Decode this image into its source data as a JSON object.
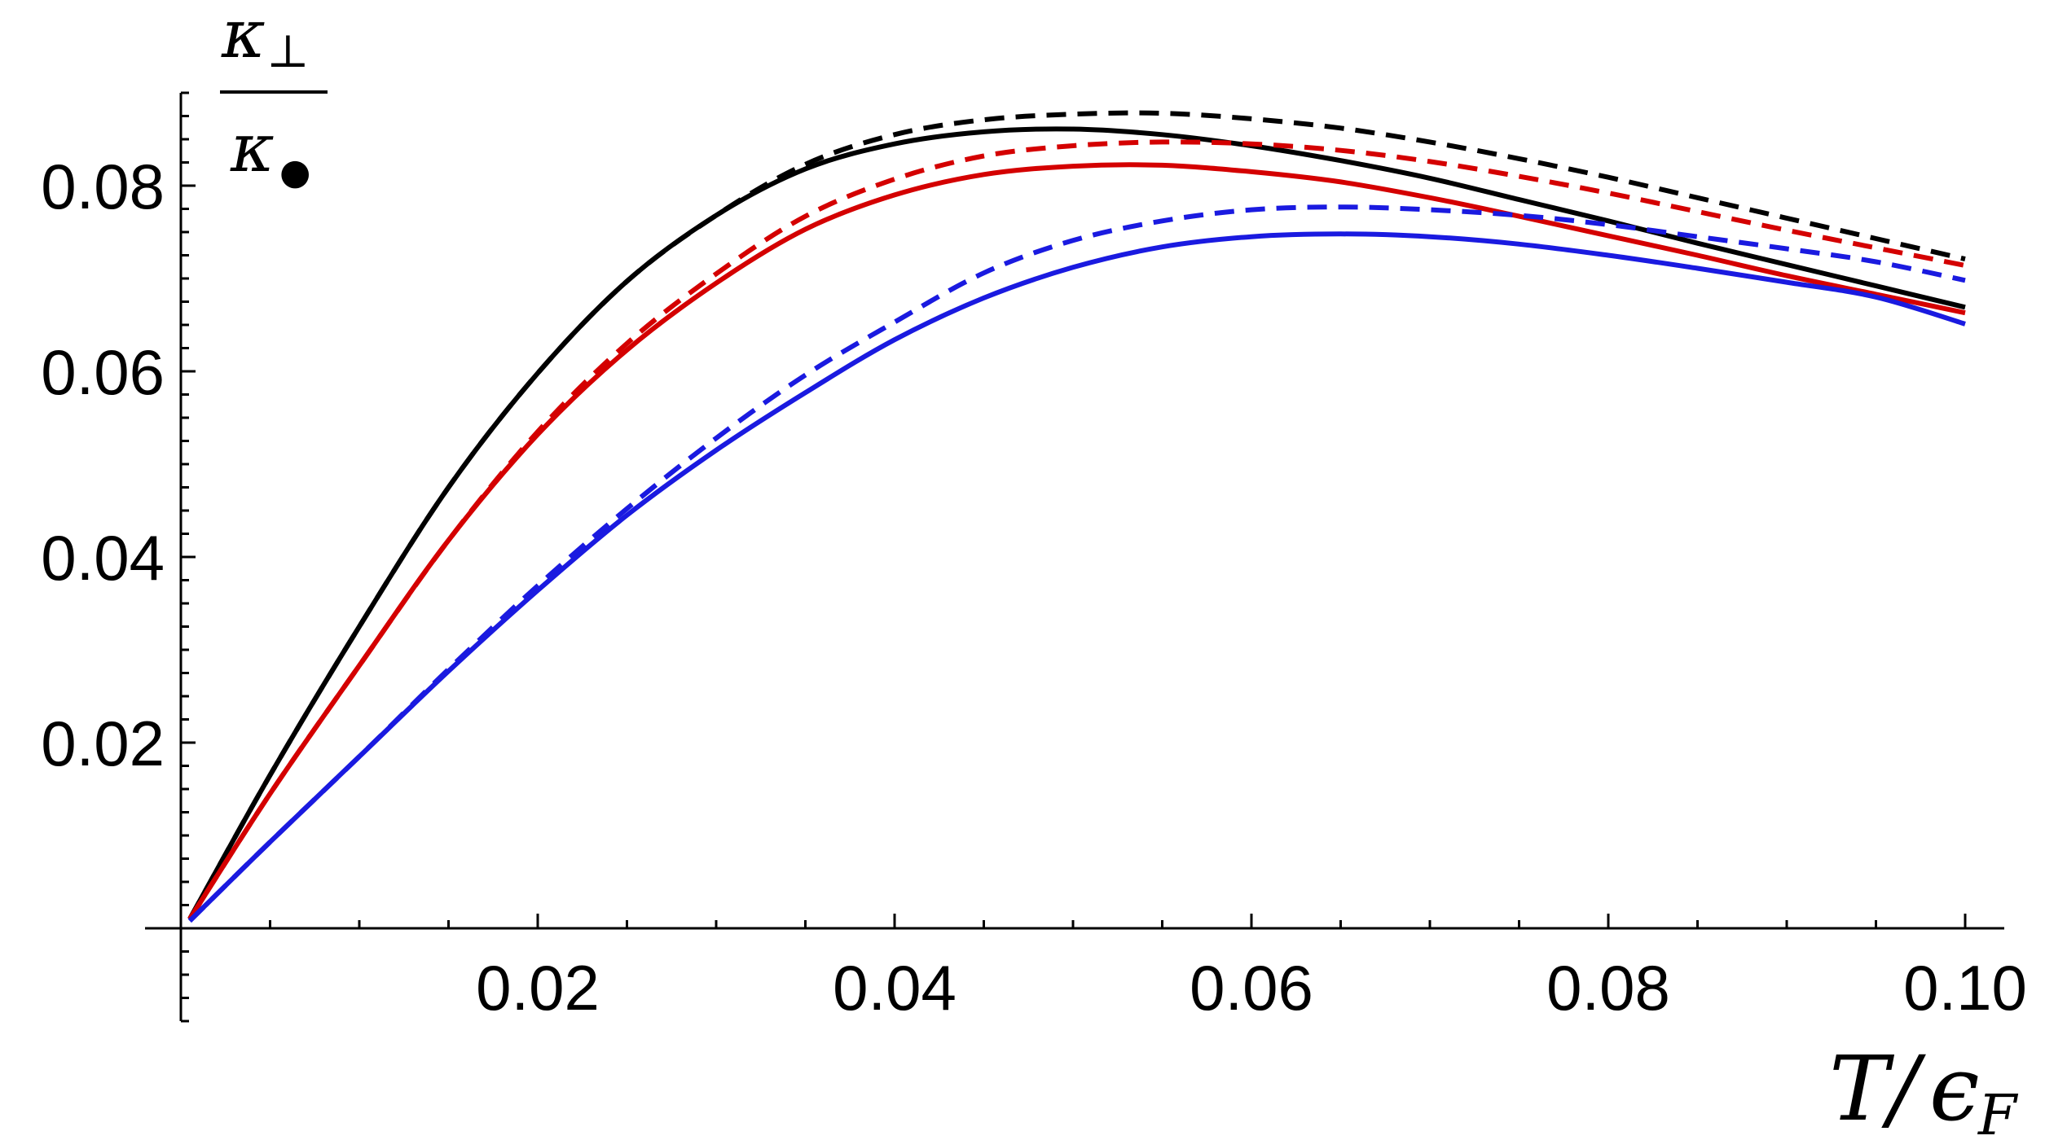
{
  "chart_data": {
    "type": "line",
    "title": "",
    "xlabel": {
      "main": "T",
      "slash": "/",
      "symbol": "ϵ",
      "sub": "F"
    },
    "ylabel": {
      "numerator": "κ",
      "numerator_sub": "⊥",
      "denominator": "κ",
      "denominator_sub": "●"
    },
    "xlim": [
      0,
      0.1
    ],
    "ylim": [
      -0.01,
      0.09
    ],
    "xticks": [
      0.02,
      0.04,
      0.06,
      0.08,
      0.1
    ],
    "xtick_labels": [
      "0.02",
      "0.04",
      "0.06",
      "0.08",
      "0.10"
    ],
    "yticks": [
      0.02,
      0.04,
      0.06,
      0.08
    ],
    "ytick_labels": [
      "0.02",
      "0.04",
      "0.06",
      "0.08"
    ],
    "x_minor_step": 0.005,
    "y_minor_step": 0.0025,
    "grid": false,
    "legend": "none",
    "series": [
      {
        "color": "#000000",
        "dash": "solid",
        "x": [
          0.0005,
          0.005,
          0.01,
          0.015,
          0.02,
          0.025,
          0.03,
          0.035,
          0.04,
          0.045,
          0.05,
          0.055,
          0.06,
          0.065,
          0.07,
          0.075,
          0.08,
          0.085,
          0.09,
          0.095,
          0.1
        ],
        "y": [
          0.001,
          0.0165,
          0.0325,
          0.0475,
          0.0598,
          0.0697,
          0.0768,
          0.0818,
          0.0845,
          0.0858,
          0.0861,
          0.0855,
          0.0843,
          0.0827,
          0.0808,
          0.0785,
          0.0762,
          0.0738,
          0.0715,
          0.0692,
          0.0669
        ]
      },
      {
        "color": "#000000",
        "dash": "dashed",
        "x": [
          0.0005,
          0.005,
          0.01,
          0.015,
          0.02,
          0.025,
          0.03,
          0.035,
          0.04,
          0.045,
          0.05,
          0.055,
          0.06,
          0.065,
          0.07,
          0.075,
          0.08,
          0.085,
          0.09,
          0.095,
          0.1
        ],
        "y": [
          0.001,
          0.0165,
          0.0325,
          0.0475,
          0.0598,
          0.0697,
          0.0768,
          0.0823,
          0.0855,
          0.0871,
          0.0877,
          0.0878,
          0.0872,
          0.0862,
          0.0847,
          0.0829,
          0.0809,
          0.0787,
          0.0765,
          0.0743,
          0.0721
        ]
      },
      {
        "color": "#d40000",
        "dash": "solid",
        "x": [
          0.0005,
          0.005,
          0.01,
          0.015,
          0.02,
          0.025,
          0.03,
          0.035,
          0.04,
          0.045,
          0.05,
          0.055,
          0.06,
          0.065,
          0.07,
          0.075,
          0.08,
          0.085,
          0.09,
          0.095,
          0.1
        ],
        "y": [
          0.001,
          0.0145,
          0.0283,
          0.0418,
          0.0532,
          0.0623,
          0.0695,
          0.0753,
          0.079,
          0.0812,
          0.0821,
          0.0822,
          0.0815,
          0.0804,
          0.0787,
          0.0767,
          0.0746,
          0.0725,
          0.0703,
          0.0683,
          0.0663
        ]
      },
      {
        "color": "#d40000",
        "dash": "dashed",
        "x": [
          0.0005,
          0.005,
          0.01,
          0.015,
          0.02,
          0.025,
          0.03,
          0.035,
          0.04,
          0.045,
          0.05,
          0.055,
          0.06,
          0.065,
          0.07,
          0.075,
          0.08,
          0.085,
          0.09,
          0.095,
          0.1
        ],
        "y": [
          0.001,
          0.0145,
          0.0283,
          0.0418,
          0.0535,
          0.063,
          0.0705,
          0.0767,
          0.0807,
          0.0832,
          0.0843,
          0.0847,
          0.0845,
          0.0838,
          0.0826,
          0.081,
          0.0792,
          0.0772,
          0.0752,
          0.0733,
          0.0714
        ]
      },
      {
        "color": "#1a1ae0",
        "dash": "solid",
        "x": [
          0.0005,
          0.005,
          0.01,
          0.015,
          0.02,
          0.025,
          0.03,
          0.035,
          0.04,
          0.045,
          0.05,
          0.055,
          0.06,
          0.065,
          0.07,
          0.075,
          0.08,
          0.085,
          0.09,
          0.095,
          0.1
        ],
        "y": [
          0.0008,
          0.0093,
          0.0185,
          0.0277,
          0.0364,
          0.0445,
          0.0515,
          0.0577,
          0.0634,
          0.0679,
          0.0712,
          0.0734,
          0.0745,
          0.0748,
          0.0745,
          0.0737,
          0.0725,
          0.0711,
          0.0696,
          0.068,
          0.0651
        ]
      },
      {
        "color": "#1a1ae0",
        "dash": "dashed",
        "x": [
          0.0005,
          0.005,
          0.01,
          0.015,
          0.02,
          0.025,
          0.03,
          0.035,
          0.04,
          0.045,
          0.05,
          0.055,
          0.06,
          0.065,
          0.07,
          0.075,
          0.08,
          0.085,
          0.09,
          0.095,
          0.1
        ],
        "y": [
          0.0008,
          0.0093,
          0.0185,
          0.0279,
          0.0369,
          0.0452,
          0.0528,
          0.0596,
          0.0653,
          0.0706,
          0.0741,
          0.0762,
          0.0774,
          0.0777,
          0.0774,
          0.0768,
          0.0758,
          0.0745,
          0.0732,
          0.0718,
          0.0698
        ]
      }
    ]
  }
}
